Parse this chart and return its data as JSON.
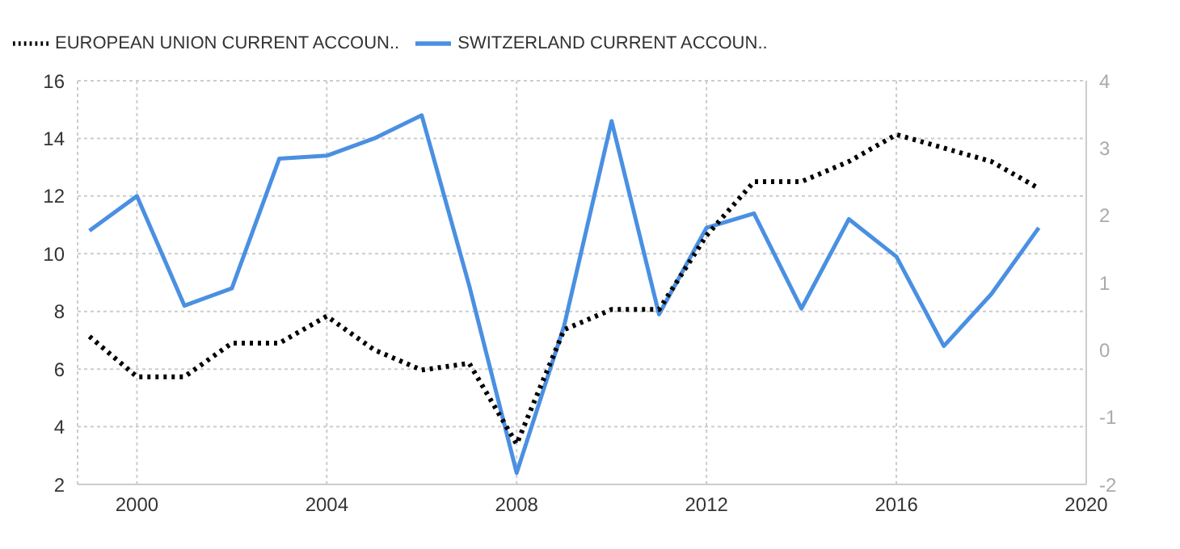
{
  "chart_data": {
    "type": "line",
    "x": [
      1999,
      2000,
      2001,
      2002,
      2003,
      2004,
      2005,
      2006,
      2007,
      2008,
      2009,
      2010,
      2011,
      2012,
      2013,
      2014,
      2015,
      2016,
      2017,
      2018,
      2019
    ],
    "series": [
      {
        "name": "SWITZERLAND CURRENT ACCOUN..",
        "color": "#4a90e2",
        "line_style": "solid",
        "values": [
          10.8,
          12.0,
          8.2,
          8.8,
          13.3,
          13.4,
          14.0,
          14.8,
          8.9,
          2.4,
          7.5,
          14.6,
          7.9,
          10.9,
          11.4,
          8.1,
          11.2,
          9.9,
          6.8,
          8.6,
          10.9
        ]
      },
      {
        "name": "EUROPEAN UNION CURRENT ACCOUN..",
        "color": "#000000",
        "line_style": "dotted",
        "axis": "y2",
        "values": [
          0.2,
          -0.4,
          -0.4,
          0.1,
          0.1,
          0.5,
          0.0,
          -0.3,
          -0.2,
          -1.4,
          0.3,
          0.6,
          0.6,
          1.7,
          2.5,
          2.5,
          2.8,
          3.2,
          3.0,
          2.8,
          2.4
        ]
      }
    ],
    "xlim": [
      1998.75,
      2020
    ],
    "xticks": [
      2000,
      2004,
      2008,
      2012,
      2016,
      2020
    ],
    "ylim": [
      2,
      16
    ],
    "yticks": [
      2,
      4,
      6,
      8,
      10,
      12,
      14,
      16
    ],
    "y2lim": [
      -2,
      4
    ],
    "y2ticks": [
      -2,
      -1,
      0,
      1,
      2,
      3,
      4
    ],
    "grid": true,
    "legend": "top left",
    "marker": "none"
  }
}
